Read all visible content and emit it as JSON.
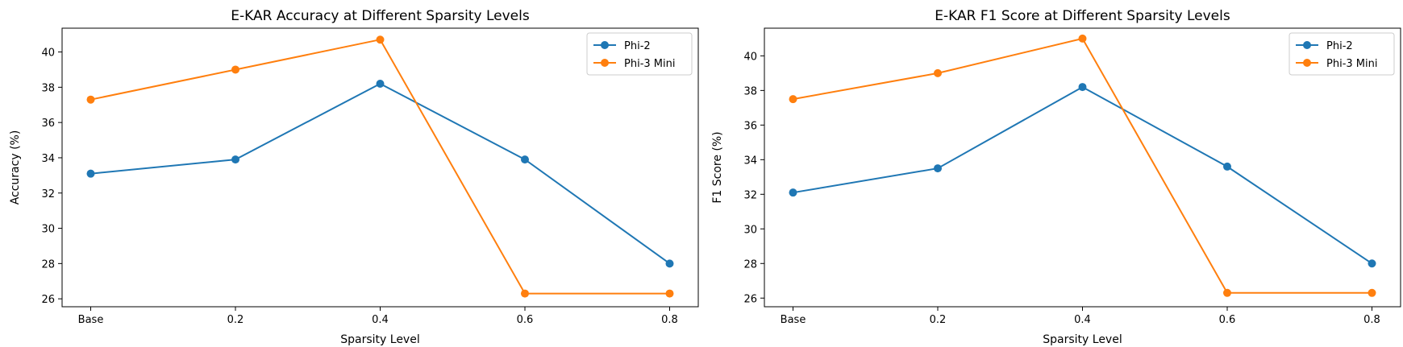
{
  "chart_data": [
    {
      "type": "line",
      "title": "E-KAR Accuracy at Different Sparsity Levels",
      "xlabel": "Sparsity Level",
      "ylabel": "Accuracy (%)",
      "categories": [
        "Base",
        "0.2",
        "0.4",
        "0.6",
        "0.8"
      ],
      "ylim": [
        25.55,
        41.35
      ],
      "yticks": [
        26,
        28,
        30,
        32,
        34,
        36,
        38,
        40
      ],
      "grid": false,
      "legend_position": "top-right",
      "series": [
        {
          "name": "Phi-2",
          "color": "#1f77b4",
          "values": [
            33.1,
            33.9,
            38.2,
            33.9,
            28.0
          ]
        },
        {
          "name": "Phi-3 Mini",
          "color": "#ff7f0e",
          "values": [
            37.3,
            39.0,
            40.7,
            26.3,
            26.3
          ]
        }
      ]
    },
    {
      "type": "line",
      "title": "E-KAR F1 Score at Different Sparsity Levels",
      "xlabel": "Sparsity Level",
      "ylabel": "F1 Score (%)",
      "categories": [
        "Base",
        "0.2",
        "0.4",
        "0.6",
        "0.8"
      ],
      "ylim": [
        25.5,
        41.6
      ],
      "yticks": [
        26,
        28,
        30,
        32,
        34,
        36,
        38,
        40
      ],
      "grid": false,
      "legend_position": "top-right",
      "series": [
        {
          "name": "Phi-2",
          "color": "#1f77b4",
          "values": [
            32.1,
            33.5,
            38.2,
            33.6,
            28.0
          ]
        },
        {
          "name": "Phi-3 Mini",
          "color": "#ff7f0e",
          "values": [
            37.5,
            39.0,
            41.0,
            26.3,
            26.3
          ]
        }
      ]
    }
  ]
}
